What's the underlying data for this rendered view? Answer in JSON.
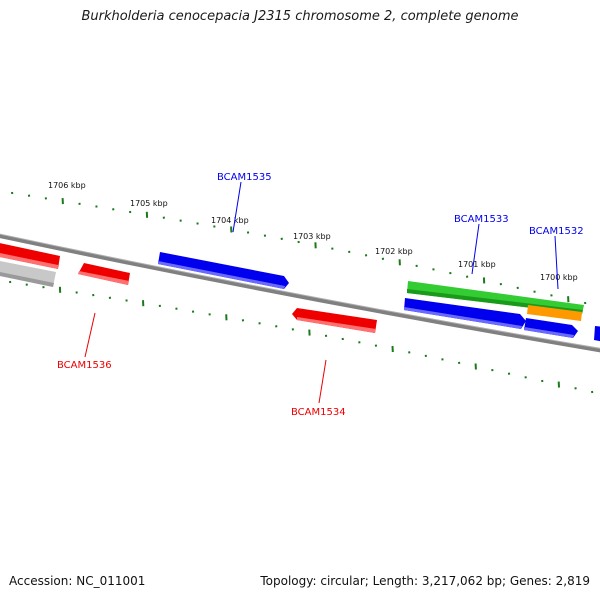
{
  "title": "Burkholderia cenocepacia J2315 chromosome 2, complete genome",
  "footer": {
    "accession": "Accession: NC_011001",
    "topology": "Topology: circular; Length: 3,217,062 bp; Genes: 2,819"
  },
  "colors": {
    "backbone": "#808080",
    "forward_gene": "#0000ee",
    "reverse_gene": "#ee0000",
    "tick": "#1a7a1a",
    "green_feature": "#33cc33",
    "orange_feature": "#ff9900",
    "grey_feature": "#bbbbbb"
  },
  "kbp_labels": [
    "1706 kbp",
    "1705 kbp",
    "1704 kbp",
    "1703 kbp",
    "1702 kbp",
    "1701 kbp",
    "1700 kbp"
  ],
  "genes": [
    {
      "id": "BCAM1535",
      "strand": "forward"
    },
    {
      "id": "BCAM1533",
      "strand": "forward"
    },
    {
      "id": "BCAM1532",
      "strand": "forward"
    },
    {
      "id": "BCAM1536",
      "strand": "reverse"
    },
    {
      "id": "BCAM1534",
      "strand": "reverse"
    }
  ]
}
